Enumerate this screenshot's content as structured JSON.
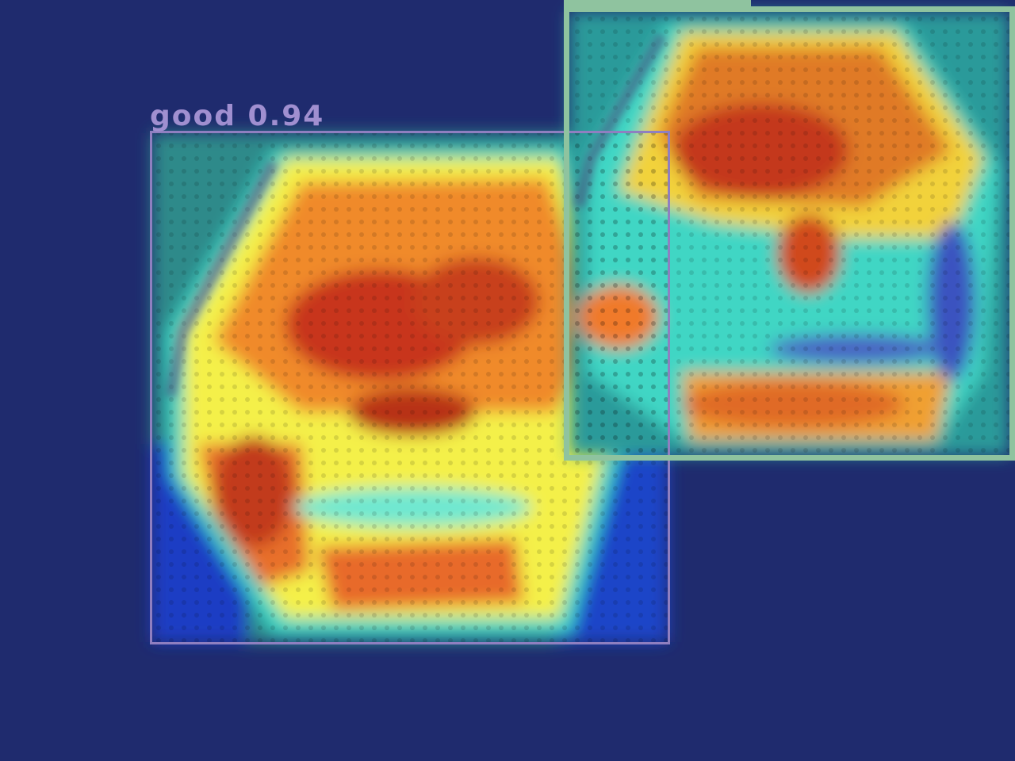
{
  "scene": {
    "background_color": "#1f2b6e",
    "overlay": "jet-colormap-heatmap"
  },
  "detections": [
    {
      "label": "good",
      "score": "0.94",
      "text": "good 0.94",
      "box_color": "#8f7fc0"
    },
    {
      "label": "",
      "score": "",
      "text": "",
      "box_color": "#8fc39f"
    }
  ]
}
